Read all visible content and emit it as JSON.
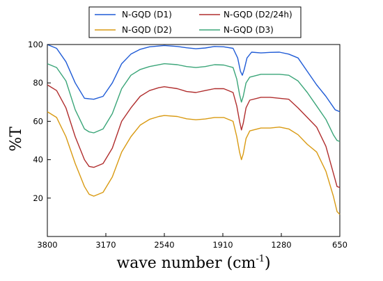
{
  "chart_data": {
    "type": "line",
    "xlabel": "wave number (cm",
    "xlabel_sup": "-1",
    "xlabel_close": ")",
    "ylabel": "%T",
    "xlim": [
      3800,
      650
    ],
    "ylim": [
      0,
      100
    ],
    "x_reversed": true,
    "x_ticks": [
      3800,
      3170,
      2540,
      1910,
      1280,
      650
    ],
    "y_ticks": [
      20,
      40,
      60,
      80,
      100
    ],
    "grid": false,
    "legend_position": "top",
    "series": [
      {
        "name": "N-GQD (D1)",
        "color": "#1f5bd6",
        "points": [
          [
            3800,
            100
          ],
          [
            3700,
            98
          ],
          [
            3600,
            91
          ],
          [
            3500,
            80
          ],
          [
            3400,
            72
          ],
          [
            3300,
            71.5
          ],
          [
            3200,
            73
          ],
          [
            3100,
            80
          ],
          [
            3000,
            90
          ],
          [
            2900,
            95
          ],
          [
            2800,
            97.5
          ],
          [
            2700,
            98.8
          ],
          [
            2540,
            99.5
          ],
          [
            2400,
            99
          ],
          [
            2300,
            98.3
          ],
          [
            2200,
            97.8
          ],
          [
            2100,
            98.2
          ],
          [
            2000,
            99
          ],
          [
            1900,
            98.8
          ],
          [
            1800,
            98
          ],
          [
            1750,
            93
          ],
          [
            1720,
            86
          ],
          [
            1700,
            84
          ],
          [
            1680,
            87
          ],
          [
            1650,
            93
          ],
          [
            1600,
            96
          ],
          [
            1500,
            95.6
          ],
          [
            1400,
            95.9
          ],
          [
            1300,
            96
          ],
          [
            1200,
            95
          ],
          [
            1100,
            93
          ],
          [
            1000,
            86
          ],
          [
            900,
            79
          ],
          [
            800,
            73
          ],
          [
            700,
            66
          ],
          [
            650,
            65
          ]
        ]
      },
      {
        "name": "N-GQD (D2/24h)",
        "color": "#b02d2d",
        "points": [
          [
            3800,
            79
          ],
          [
            3700,
            76
          ],
          [
            3600,
            67
          ],
          [
            3500,
            52
          ],
          [
            3400,
            40
          ],
          [
            3350,
            36.5
          ],
          [
            3300,
            36
          ],
          [
            3200,
            38
          ],
          [
            3100,
            46
          ],
          [
            3000,
            60
          ],
          [
            2900,
            67
          ],
          [
            2800,
            73
          ],
          [
            2700,
            76
          ],
          [
            2600,
            77.5
          ],
          [
            2540,
            78
          ],
          [
            2400,
            77
          ],
          [
            2300,
            75.5
          ],
          [
            2200,
            75
          ],
          [
            2100,
            76
          ],
          [
            2000,
            77
          ],
          [
            1900,
            77
          ],
          [
            1800,
            75
          ],
          [
            1760,
            68
          ],
          [
            1730,
            60
          ],
          [
            1710,
            55.5
          ],
          [
            1690,
            59
          ],
          [
            1660,
            67
          ],
          [
            1620,
            71
          ],
          [
            1500,
            72.5
          ],
          [
            1400,
            72.5
          ],
          [
            1300,
            72
          ],
          [
            1200,
            71.5
          ],
          [
            1100,
            67
          ],
          [
            1000,
            62
          ],
          [
            900,
            57
          ],
          [
            800,
            47
          ],
          [
            720,
            33
          ],
          [
            680,
            26
          ],
          [
            650,
            25.5
          ]
        ]
      },
      {
        "name": "N-GQD (D2)",
        "color": "#d99a12",
        "points": [
          [
            3800,
            65
          ],
          [
            3700,
            62
          ],
          [
            3600,
            52
          ],
          [
            3500,
            38
          ],
          [
            3400,
            26
          ],
          [
            3350,
            22
          ],
          [
            3300,
            21
          ],
          [
            3200,
            23
          ],
          [
            3100,
            31
          ],
          [
            3000,
            44
          ],
          [
            2900,
            52
          ],
          [
            2800,
            58
          ],
          [
            2700,
            61
          ],
          [
            2600,
            62.5
          ],
          [
            2540,
            63
          ],
          [
            2400,
            62.5
          ],
          [
            2300,
            61.3
          ],
          [
            2200,
            60.8
          ],
          [
            2100,
            61.2
          ],
          [
            2000,
            62
          ],
          [
            1900,
            62
          ],
          [
            1800,
            60
          ],
          [
            1760,
            52
          ],
          [
            1730,
            44
          ],
          [
            1710,
            40
          ],
          [
            1690,
            43
          ],
          [
            1660,
            51
          ],
          [
            1620,
            55
          ],
          [
            1500,
            56.5
          ],
          [
            1400,
            56.5
          ],
          [
            1300,
            57
          ],
          [
            1200,
            56
          ],
          [
            1100,
            53
          ],
          [
            1000,
            48
          ],
          [
            900,
            44
          ],
          [
            800,
            34
          ],
          [
            720,
            21
          ],
          [
            680,
            13
          ],
          [
            650,
            11.5
          ]
        ]
      },
      {
        "name": "N-GQD (D3)",
        "color": "#3aa578",
        "points": [
          [
            3800,
            90
          ],
          [
            3700,
            88
          ],
          [
            3600,
            81
          ],
          [
            3500,
            66
          ],
          [
            3400,
            56
          ],
          [
            3350,
            54.5
          ],
          [
            3300,
            54
          ],
          [
            3200,
            56
          ],
          [
            3100,
            64
          ],
          [
            3000,
            77
          ],
          [
            2900,
            84
          ],
          [
            2800,
            87
          ],
          [
            2700,
            88.5
          ],
          [
            2540,
            90
          ],
          [
            2400,
            89.5
          ],
          [
            2300,
            88.5
          ],
          [
            2200,
            88
          ],
          [
            2100,
            88.5
          ],
          [
            2000,
            89.5
          ],
          [
            1900,
            89.3
          ],
          [
            1800,
            88
          ],
          [
            1760,
            82
          ],
          [
            1730,
            74
          ],
          [
            1710,
            70
          ],
          [
            1690,
            73
          ],
          [
            1660,
            80
          ],
          [
            1620,
            83
          ],
          [
            1500,
            84.5
          ],
          [
            1400,
            84.5
          ],
          [
            1300,
            84.5
          ],
          [
            1200,
            84
          ],
          [
            1100,
            81
          ],
          [
            1000,
            75
          ],
          [
            900,
            68
          ],
          [
            800,
            61
          ],
          [
            720,
            53
          ],
          [
            680,
            50
          ],
          [
            650,
            49.5
          ]
        ]
      }
    ]
  }
}
